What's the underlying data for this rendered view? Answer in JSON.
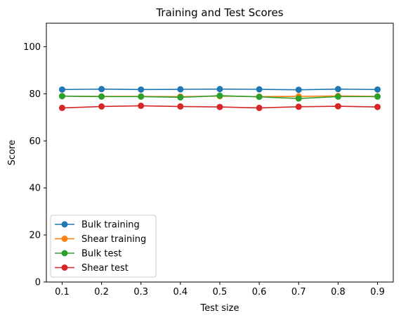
{
  "chart_data": {
    "type": "line",
    "title": "Training and Test Scores",
    "xlabel": "Test size",
    "ylabel": "Score",
    "x": [
      0.1,
      0.2,
      0.3,
      0.4,
      0.5,
      0.6,
      0.7,
      0.8,
      0.9
    ],
    "x_tick_labels": [
      "0.1",
      "0.2",
      "0.3",
      "0.4",
      "0.5",
      "0.6",
      "0.7",
      "0.8",
      "0.9"
    ],
    "xlim": [
      0.06,
      0.94
    ],
    "ylim": [
      0,
      110
    ],
    "y_ticks": [
      0,
      20,
      40,
      60,
      80,
      100
    ],
    "y_tick_labels": [
      "0",
      "20",
      "40",
      "60",
      "80",
      "100"
    ],
    "grid": false,
    "legend_position": "lower-left",
    "series": [
      {
        "name": "Bulk training",
        "color": "#1f77b4",
        "values": [
          81.8,
          82.0,
          81.8,
          81.9,
          82.0,
          81.9,
          81.7,
          82.0,
          81.8
        ]
      },
      {
        "name": "Shear training",
        "color": "#ff7f0e",
        "values": [
          79.0,
          78.9,
          78.9,
          78.8,
          79.0,
          78.8,
          78.9,
          79.1,
          78.9
        ]
      },
      {
        "name": "Bulk test",
        "color": "#2ca02c",
        "values": [
          79.0,
          78.8,
          78.8,
          78.5,
          79.2,
          78.7,
          78.0,
          78.8,
          78.8
        ]
      },
      {
        "name": "Shear test",
        "color": "#d62728",
        "values": [
          74.0,
          74.6,
          74.9,
          74.6,
          74.4,
          74.0,
          74.5,
          74.7,
          74.4
        ]
      }
    ]
  }
}
